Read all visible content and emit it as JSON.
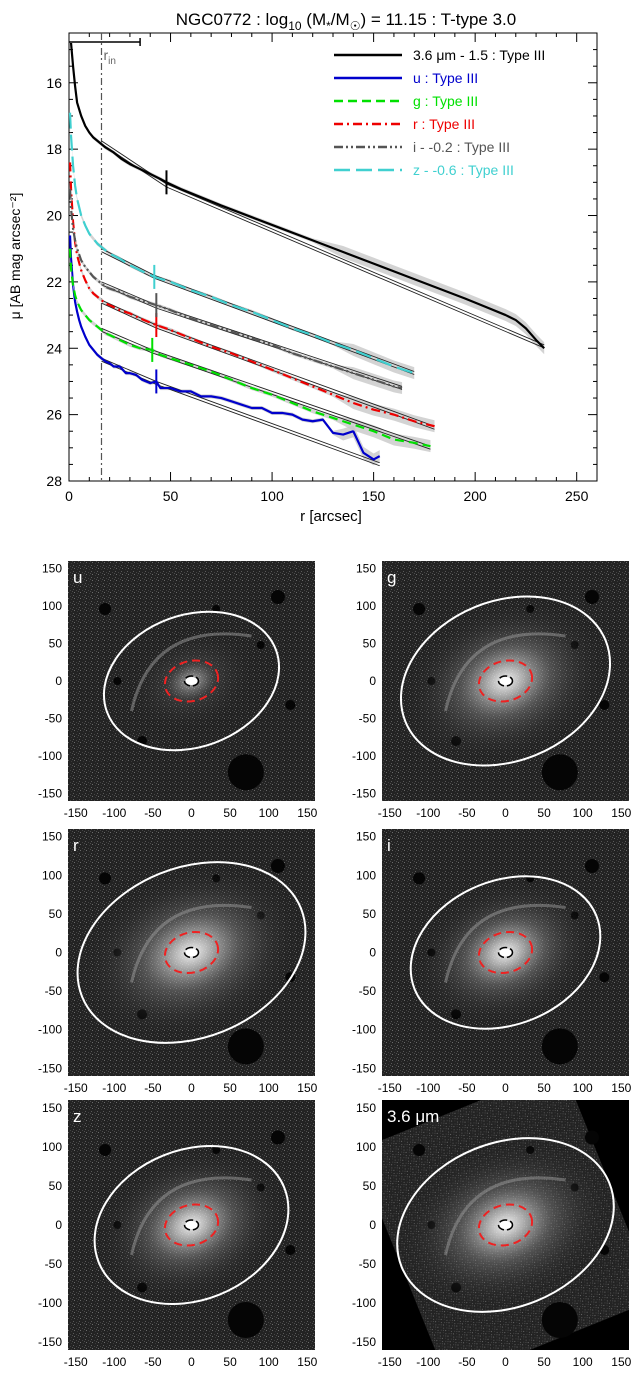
{
  "chart_data": [
    {
      "type": "line",
      "title": "NGC0772 : log10 (M*/M☉) = 11.15 : T-type 3.0",
      "xlabel": "r [arcsec]",
      "ylabel": "μ [AB mag arcsec⁻²]",
      "xlim": [
        0,
        260
      ],
      "ylim": [
        28,
        14.5
      ],
      "y_inverted": true,
      "x_ticks": [
        0,
        50,
        100,
        150,
        200,
        250
      ],
      "y_ticks": [
        16,
        18,
        20,
        22,
        24,
        26,
        28
      ],
      "r_in": 16,
      "r_in_label": "r",
      "r_in_sub": "in",
      "scalebar": [
        0,
        35
      ],
      "legend_position": "top-right",
      "series": [
        {
          "name": "3.6 μm - 1.5 : Type III",
          "color": "#000000",
          "dash": "solid",
          "x": [
            1,
            2,
            3,
            4,
            6,
            8,
            10,
            12,
            15,
            18,
            22,
            26,
            30,
            35,
            40,
            45,
            48,
            55,
            65,
            75,
            90,
            105,
            120,
            135,
            150,
            165,
            180,
            195,
            205,
            215,
            220,
            225,
            230,
            234
          ],
          "y": [
            14.8,
            15.5,
            16.1,
            16.6,
            17.0,
            17.3,
            17.5,
            17.65,
            17.8,
            17.95,
            18.1,
            18.3,
            18.45,
            18.6,
            18.75,
            18.9,
            19.0,
            19.2,
            19.45,
            19.7,
            20.05,
            20.4,
            20.75,
            21.1,
            21.45,
            21.8,
            22.15,
            22.5,
            22.75,
            23.0,
            23.15,
            23.4,
            23.75,
            24.0
          ],
          "break_r": 48,
          "fits": [
            {
              "x": [
                16,
                48
              ],
              "y": [
                17.75,
                19.05
              ]
            },
            {
              "x": [
                48,
                234
              ],
              "y": [
                19.05,
                23.9
              ]
            }
          ]
        },
        {
          "name": "u : Type III",
          "color": "#0000cc",
          "dash": "solid",
          "x": [
            0.5,
            1,
            2,
            3,
            4,
            5,
            6,
            8,
            10,
            12,
            14,
            16,
            18,
            20,
            22,
            25,
            28,
            30,
            33,
            36,
            40,
            43,
            45,
            50,
            55,
            60,
            65,
            70,
            75,
            80,
            85,
            90,
            95,
            100,
            105,
            110,
            115,
            120,
            125,
            130,
            135,
            140,
            145,
            150,
            153
          ],
          "y": [
            20.6,
            21.3,
            22.1,
            22.6,
            22.9,
            23.15,
            23.35,
            23.65,
            23.9,
            24.05,
            24.2,
            24.3,
            24.4,
            24.45,
            24.55,
            24.55,
            24.75,
            24.75,
            24.8,
            24.95,
            25.05,
            25.0,
            25.2,
            25.2,
            25.3,
            25.3,
            25.45,
            25.45,
            25.5,
            25.6,
            25.7,
            25.8,
            25.8,
            25.95,
            25.95,
            26.0,
            26.15,
            26.2,
            26.15,
            26.55,
            26.6,
            26.5,
            27.15,
            27.35,
            27.25
          ],
          "break_r": 43,
          "fits": [
            {
              "x": [
                16,
                43
              ],
              "y": [
                24.3,
                25.0
              ]
            },
            {
              "x": [
                43,
                153
              ],
              "y": [
                25.0,
                27.45
              ]
            }
          ]
        },
        {
          "name": "g : Type III",
          "color": "#00e000",
          "dash": "dashed",
          "x": [
            0.5,
            1,
            2,
            3,
            4,
            6,
            8,
            10,
            12,
            14,
            16,
            18,
            20,
            25,
            30,
            35,
            41,
            45,
            50,
            60,
            70,
            80,
            90,
            100,
            110,
            120,
            130,
            140,
            150,
            160,
            170,
            178
          ],
          "y": [
            21.0,
            21.6,
            22.1,
            22.4,
            22.6,
            22.85,
            23.0,
            23.15,
            23.25,
            23.35,
            23.45,
            23.55,
            23.6,
            23.75,
            23.9,
            24.0,
            24.05,
            24.2,
            24.3,
            24.5,
            24.7,
            24.95,
            25.2,
            25.4,
            25.65,
            25.9,
            26.1,
            26.3,
            26.5,
            26.75,
            26.85,
            26.95
          ],
          "break_r": 41,
          "fits": [
            {
              "x": [
                16,
                41
              ],
              "y": [
                23.4,
                24.05
              ]
            },
            {
              "x": [
                41,
                178
              ],
              "y": [
                24.05,
                26.95
              ]
            }
          ]
        },
        {
          "name": "r : Type III",
          "color": "#ee0000",
          "dash": "dashdot",
          "x": [
            0.5,
            1,
            2,
            3,
            4,
            6,
            8,
            10,
            12,
            14,
            16,
            18,
            20,
            25,
            30,
            35,
            43,
            50,
            60,
            70,
            80,
            90,
            100,
            110,
            120,
            130,
            140,
            150,
            160,
            170,
            180
          ],
          "y": [
            18.4,
            19.2,
            20.2,
            20.8,
            21.2,
            21.65,
            21.95,
            22.2,
            22.35,
            22.45,
            22.55,
            22.65,
            22.7,
            22.85,
            22.95,
            23.1,
            23.3,
            23.45,
            23.7,
            23.95,
            24.15,
            24.4,
            24.65,
            24.9,
            25.15,
            25.4,
            25.65,
            25.85,
            26.0,
            26.2,
            26.35
          ],
          "break_r": 43,
          "fits": [
            {
              "x": [
                16,
                43
              ],
              "y": [
                22.55,
                23.3
              ]
            },
            {
              "x": [
                43,
                180
              ],
              "y": [
                23.3,
                26.35
              ]
            }
          ]
        },
        {
          "name": "i - -0.2 : Type III",
          "color": "#555555",
          "dash": "dashdotdot",
          "x": [
            0.5,
            1,
            2,
            3,
            4,
            6,
            8,
            10,
            12,
            14,
            16,
            18,
            20,
            25,
            30,
            35,
            43,
            50,
            60,
            70,
            80,
            90,
            100,
            110,
            120,
            130,
            140,
            150,
            160,
            164
          ],
          "y": [
            19.2,
            19.8,
            20.4,
            20.75,
            21.0,
            21.35,
            21.55,
            21.7,
            21.85,
            21.95,
            22.05,
            22.15,
            22.2,
            22.3,
            22.45,
            22.55,
            22.7,
            22.85,
            23.1,
            23.3,
            23.5,
            23.7,
            23.9,
            24.15,
            24.35,
            24.55,
            24.75,
            24.95,
            25.15,
            25.2
          ],
          "break_r": 43,
          "fits": [
            {
              "x": [
                16,
                43
              ],
              "y": [
                22.0,
                22.7
              ]
            },
            {
              "x": [
                43,
                164
              ],
              "y": [
                22.7,
                25.15
              ]
            }
          ]
        },
        {
          "name": "z - -0.6 : Type III",
          "color": "#40d0d0",
          "dash": "longdash",
          "x": [
            0.5,
            1,
            2,
            3,
            4,
            6,
            8,
            10,
            12,
            14,
            16,
            18,
            20,
            25,
            30,
            35,
            42,
            50,
            60,
            70,
            80,
            90,
            100,
            110,
            120,
            130,
            140,
            150,
            160,
            170
          ],
          "y": [
            16.9,
            17.6,
            18.5,
            19.1,
            19.5,
            20.0,
            20.3,
            20.55,
            20.7,
            20.85,
            20.95,
            21.05,
            21.15,
            21.3,
            21.5,
            21.65,
            21.85,
            22.0,
            22.25,
            22.45,
            22.7,
            22.9,
            23.15,
            23.4,
            23.6,
            23.85,
            24.05,
            24.3,
            24.55,
            24.75
          ],
          "break_r": 42,
          "fits": [
            {
              "x": [
                16,
                42
              ],
              "y": [
                21.0,
                21.8
              ]
            },
            {
              "x": [
                42,
                170
              ],
              "y": [
                21.8,
                24.7
              ]
            }
          ]
        }
      ]
    },
    {
      "type": "image",
      "panels": [
        {
          "label": "u",
          "x_ticks": [
            -150,
            -100,
            -50,
            0,
            50,
            100,
            150
          ],
          "y_ticks": [
            150,
            100,
            50,
            0,
            -50,
            -100,
            -150
          ],
          "rotated_frame": false
        },
        {
          "label": "g",
          "x_ticks": [
            -150,
            -100,
            -50,
            0,
            50,
            100,
            150
          ],
          "y_ticks": [
            150,
            100,
            50,
            0,
            -50,
            -100,
            -150
          ],
          "rotated_frame": false
        },
        {
          "label": "r",
          "x_ticks": [
            -150,
            -100,
            -50,
            0,
            50,
            100,
            150
          ],
          "y_ticks": [
            150,
            100,
            50,
            0,
            -50,
            -100,
            -150
          ],
          "rotated_frame": false
        },
        {
          "label": "i",
          "x_ticks": [
            -150,
            -100,
            -50,
            0,
            50,
            100,
            150
          ],
          "y_ticks": [
            150,
            100,
            50,
            0,
            -50,
            -100,
            -150
          ],
          "rotated_frame": false
        },
        {
          "label": "z",
          "x_ticks": [
            -150,
            -100,
            -50,
            0,
            50,
            100,
            150
          ],
          "y_ticks": [
            150,
            100,
            50,
            0,
            -50,
            -100,
            -150
          ],
          "rotated_frame": false
        },
        {
          "label": "3.6 μm",
          "x_ticks": [
            -150,
            -100,
            -50,
            0,
            50,
            100,
            150
          ],
          "y_ticks": [
            150,
            100,
            50,
            0,
            -50,
            -100,
            -150
          ],
          "rotated_frame": true
        }
      ]
    }
  ]
}
